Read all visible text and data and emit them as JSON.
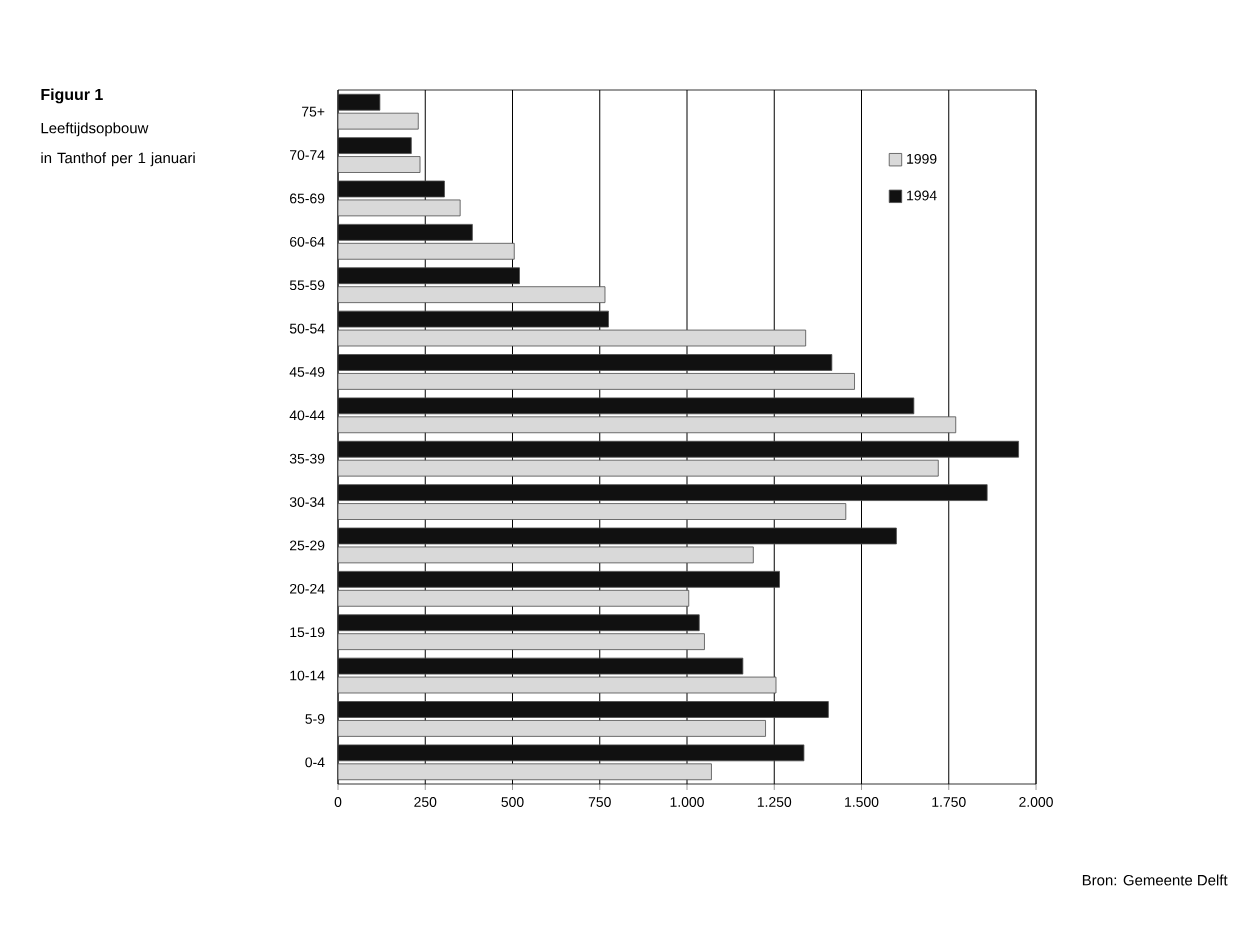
{
  "chart_data": {
    "type": "bar",
    "orientation": "horizontal",
    "title": "Figuur 1",
    "subtitle": "Leeftijdsopbouw in Tanthof per 1 januari",
    "categories": [
      "75+",
      "70-74",
      "65-69",
      "60-64",
      "55-59",
      "50-54",
      "45-49",
      "40-44",
      "35-39",
      "30-34",
      "25-29",
      "20-24",
      "15-19",
      "10-14",
      "5-9",
      "0-4"
    ],
    "series": [
      {
        "name": "1999",
        "color": "#d9d9d9",
        "values": [
          230,
          235,
          350,
          505,
          765,
          1340,
          1480,
          1770,
          1720,
          1455,
          1190,
          1005,
          1050,
          1255,
          1225,
          1070
        ]
      },
      {
        "name": "1994",
        "color": "#111111",
        "values": [
          120,
          210,
          305,
          385,
          520,
          775,
          1415,
          1650,
          1950,
          1860,
          1600,
          1265,
          1035,
          1160,
          1405,
          1335
        ]
      }
    ],
    "xlim": [
      0,
      2000
    ],
    "xticks": [
      0,
      250,
      500,
      750,
      {
        "value": 1000,
        "label": "1.000"
      },
      {
        "value": 1250,
        "label": "1.250"
      },
      {
        "value": 1500,
        "label": "1.500"
      },
      {
        "value": 1750,
        "label": "1.750"
      },
      {
        "value": 2000,
        "label": "2.000"
      }
    ],
    "grid": "x",
    "legend": "top right",
    "annotations": [
      "Bron: Gemeente Delft"
    ]
  }
}
